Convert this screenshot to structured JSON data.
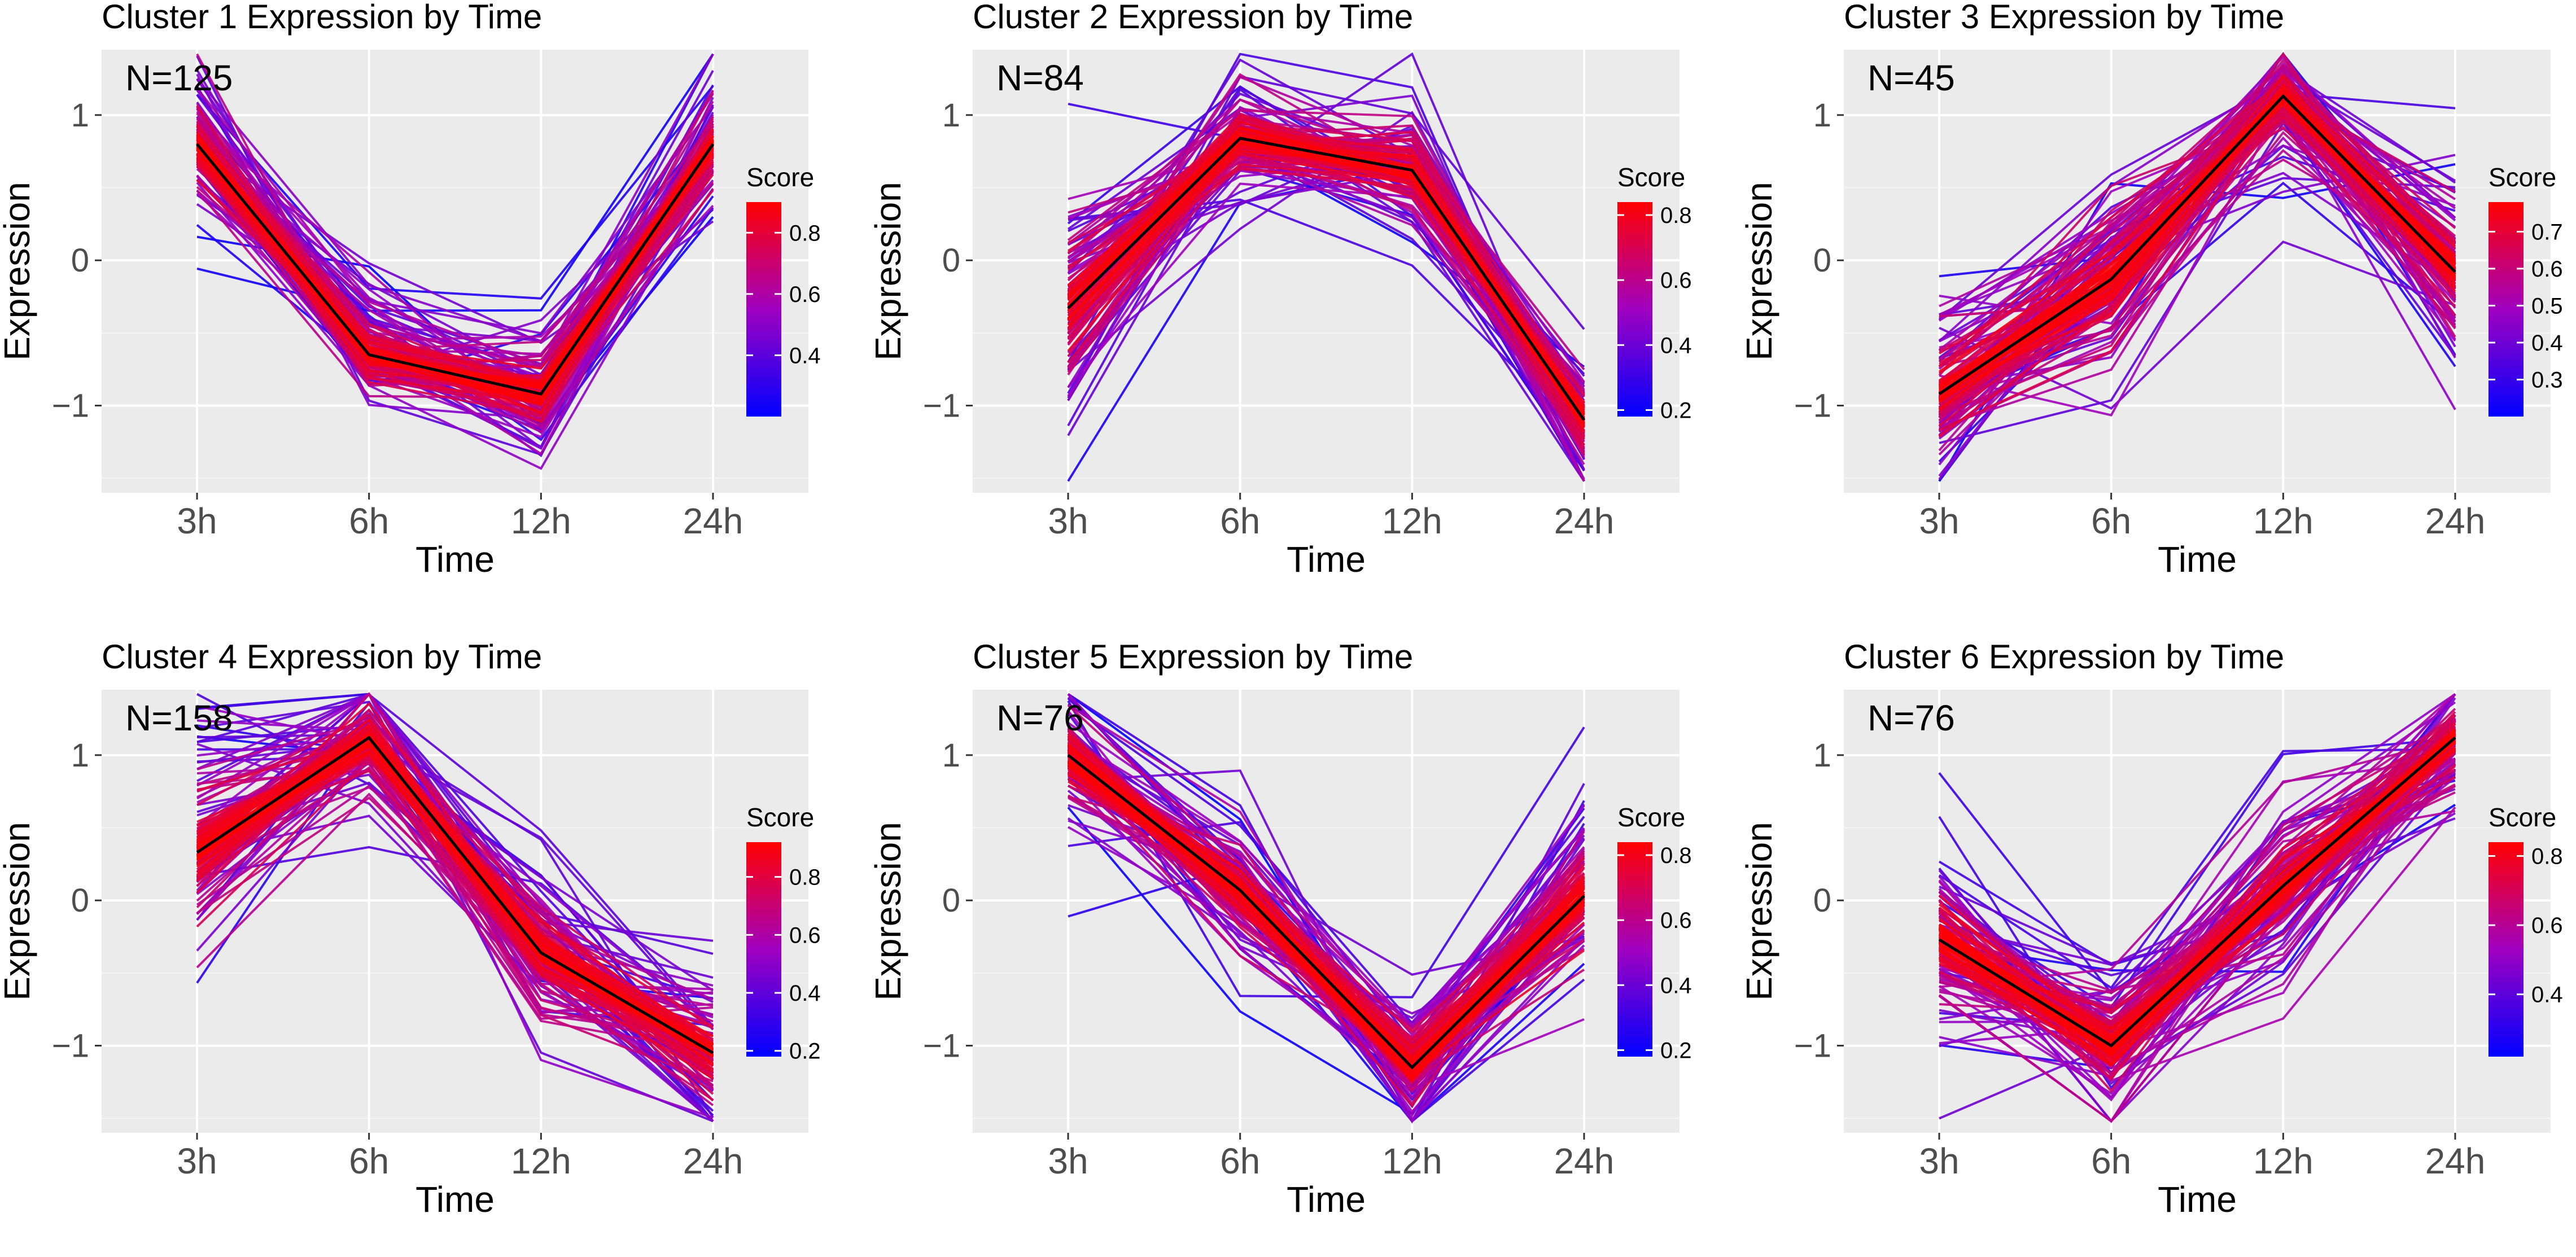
{
  "figure": {
    "x_categories": [
      "3h",
      "6h",
      "12h",
      "24h"
    ],
    "y_ticks": [
      {
        "value": 1,
        "label": "1"
      },
      {
        "value": 0,
        "label": "0"
      },
      {
        "value": -1,
        "label": "−1"
      }
    ],
    "colors": {
      "panel_bg": "#ebebeb",
      "grid": "#ffffff",
      "low": "#0000ff",
      "mid": "#a000c0",
      "high": "#ff0000",
      "centroid": "#000000"
    }
  },
  "chart_data": [
    {
      "type": "line",
      "title": "Cluster 1 Expression by Time",
      "annotation": "N=125",
      "xlabel": "Time",
      "ylabel": "Expression",
      "categories": [
        "3h",
        "6h",
        "12h",
        "24h"
      ],
      "ylim": [
        -1.6,
        1.45
      ],
      "centroid": [
        0.8,
        -0.65,
        -0.92,
        0.8
      ],
      "spread": [
        0.3,
        0.3,
        0.3,
        0.3
      ],
      "legend": {
        "title": "Score",
        "range": [
          0.2,
          0.9
        ],
        "ticks": [
          {
            "value": 0.4,
            "label": "0.4"
          },
          {
            "value": 0.6,
            "label": "0.6"
          },
          {
            "value": 0.8,
            "label": "0.8"
          }
        ]
      }
    },
    {
      "type": "line",
      "title": "Cluster 2 Expression by Time",
      "annotation": "N=84",
      "xlabel": "Time",
      "ylabel": "Expression",
      "categories": [
        "3h",
        "6h",
        "12h",
        "24h"
      ],
      "ylim": [
        -1.6,
        1.45
      ],
      "centroid": [
        -0.33,
        0.84,
        0.62,
        -1.1
      ],
      "spread": [
        0.5,
        0.3,
        0.3,
        0.3
      ],
      "legend": {
        "title": "Score",
        "range": [
          0.18,
          0.84
        ],
        "ticks": [
          {
            "value": 0.2,
            "label": "0.2"
          },
          {
            "value": 0.4,
            "label": "0.4"
          },
          {
            "value": 0.6,
            "label": "0.6"
          },
          {
            "value": 0.8,
            "label": "0.8"
          }
        ]
      }
    },
    {
      "type": "line",
      "title": "Cluster 3 Expression by Time",
      "annotation": "N=45",
      "xlabel": "Time",
      "ylabel": "Expression",
      "categories": [
        "3h",
        "6h",
        "12h",
        "24h"
      ],
      "ylim": [
        -1.6,
        1.45
      ],
      "centroid": [
        -0.92,
        -0.13,
        1.13,
        -0.08
      ],
      "spread": [
        0.4,
        0.5,
        0.3,
        0.4
      ],
      "legend": {
        "title": "Score",
        "range": [
          0.2,
          0.78
        ],
        "ticks": [
          {
            "value": 0.3,
            "label": "0.3"
          },
          {
            "value": 0.4,
            "label": "0.4"
          },
          {
            "value": 0.5,
            "label": "0.5"
          },
          {
            "value": 0.6,
            "label": "0.6"
          },
          {
            "value": 0.7,
            "label": "0.7"
          }
        ]
      }
    },
    {
      "type": "line",
      "title": "Cluster 4 Expression by Time",
      "annotation": "N=158",
      "xlabel": "Time",
      "ylabel": "Expression",
      "categories": [
        "3h",
        "6h",
        "12h",
        "24h"
      ],
      "ylim": [
        -1.6,
        1.45
      ],
      "centroid": [
        0.33,
        1.12,
        -0.36,
        -1.05
      ],
      "spread": [
        0.5,
        0.3,
        0.4,
        0.35
      ],
      "legend": {
        "title": "Score",
        "range": [
          0.18,
          0.92
        ],
        "ticks": [
          {
            "value": 0.2,
            "label": "0.2"
          },
          {
            "value": 0.4,
            "label": "0.4"
          },
          {
            "value": 0.6,
            "label": "0.6"
          },
          {
            "value": 0.8,
            "label": "0.8"
          }
        ]
      }
    },
    {
      "type": "line",
      "title": "Cluster 5 Expression by Time",
      "annotation": "N=76",
      "xlabel": "Time",
      "ylabel": "Expression",
      "categories": [
        "3h",
        "6h",
        "12h",
        "24h"
      ],
      "ylim": [
        -1.6,
        1.45
      ],
      "centroid": [
        1.0,
        0.07,
        -1.15,
        0.03
      ],
      "spread": [
        0.35,
        0.35,
        0.3,
        0.4
      ],
      "legend": {
        "title": "Score",
        "range": [
          0.18,
          0.84
        ],
        "ticks": [
          {
            "value": 0.2,
            "label": "0.2"
          },
          {
            "value": 0.4,
            "label": "0.4"
          },
          {
            "value": 0.6,
            "label": "0.6"
          },
          {
            "value": 0.8,
            "label": "0.8"
          }
        ]
      }
    },
    {
      "type": "line",
      "title": "Cluster 6 Expression by Time",
      "annotation": "N=76",
      "xlabel": "Time",
      "ylabel": "Expression",
      "categories": [
        "3h",
        "6h",
        "12h",
        "24h"
      ],
      "ylim": [
        -1.6,
        1.45
      ],
      "centroid": [
        -0.27,
        -1.0,
        0.1,
        1.12
      ],
      "spread": [
        0.45,
        0.35,
        0.4,
        0.3
      ],
      "legend": {
        "title": "Score",
        "range": [
          0.22,
          0.84
        ],
        "ticks": [
          {
            "value": 0.4,
            "label": "0.4"
          },
          {
            "value": 0.6,
            "label": "0.6"
          },
          {
            "value": 0.8,
            "label": "0.8"
          }
        ]
      }
    }
  ]
}
